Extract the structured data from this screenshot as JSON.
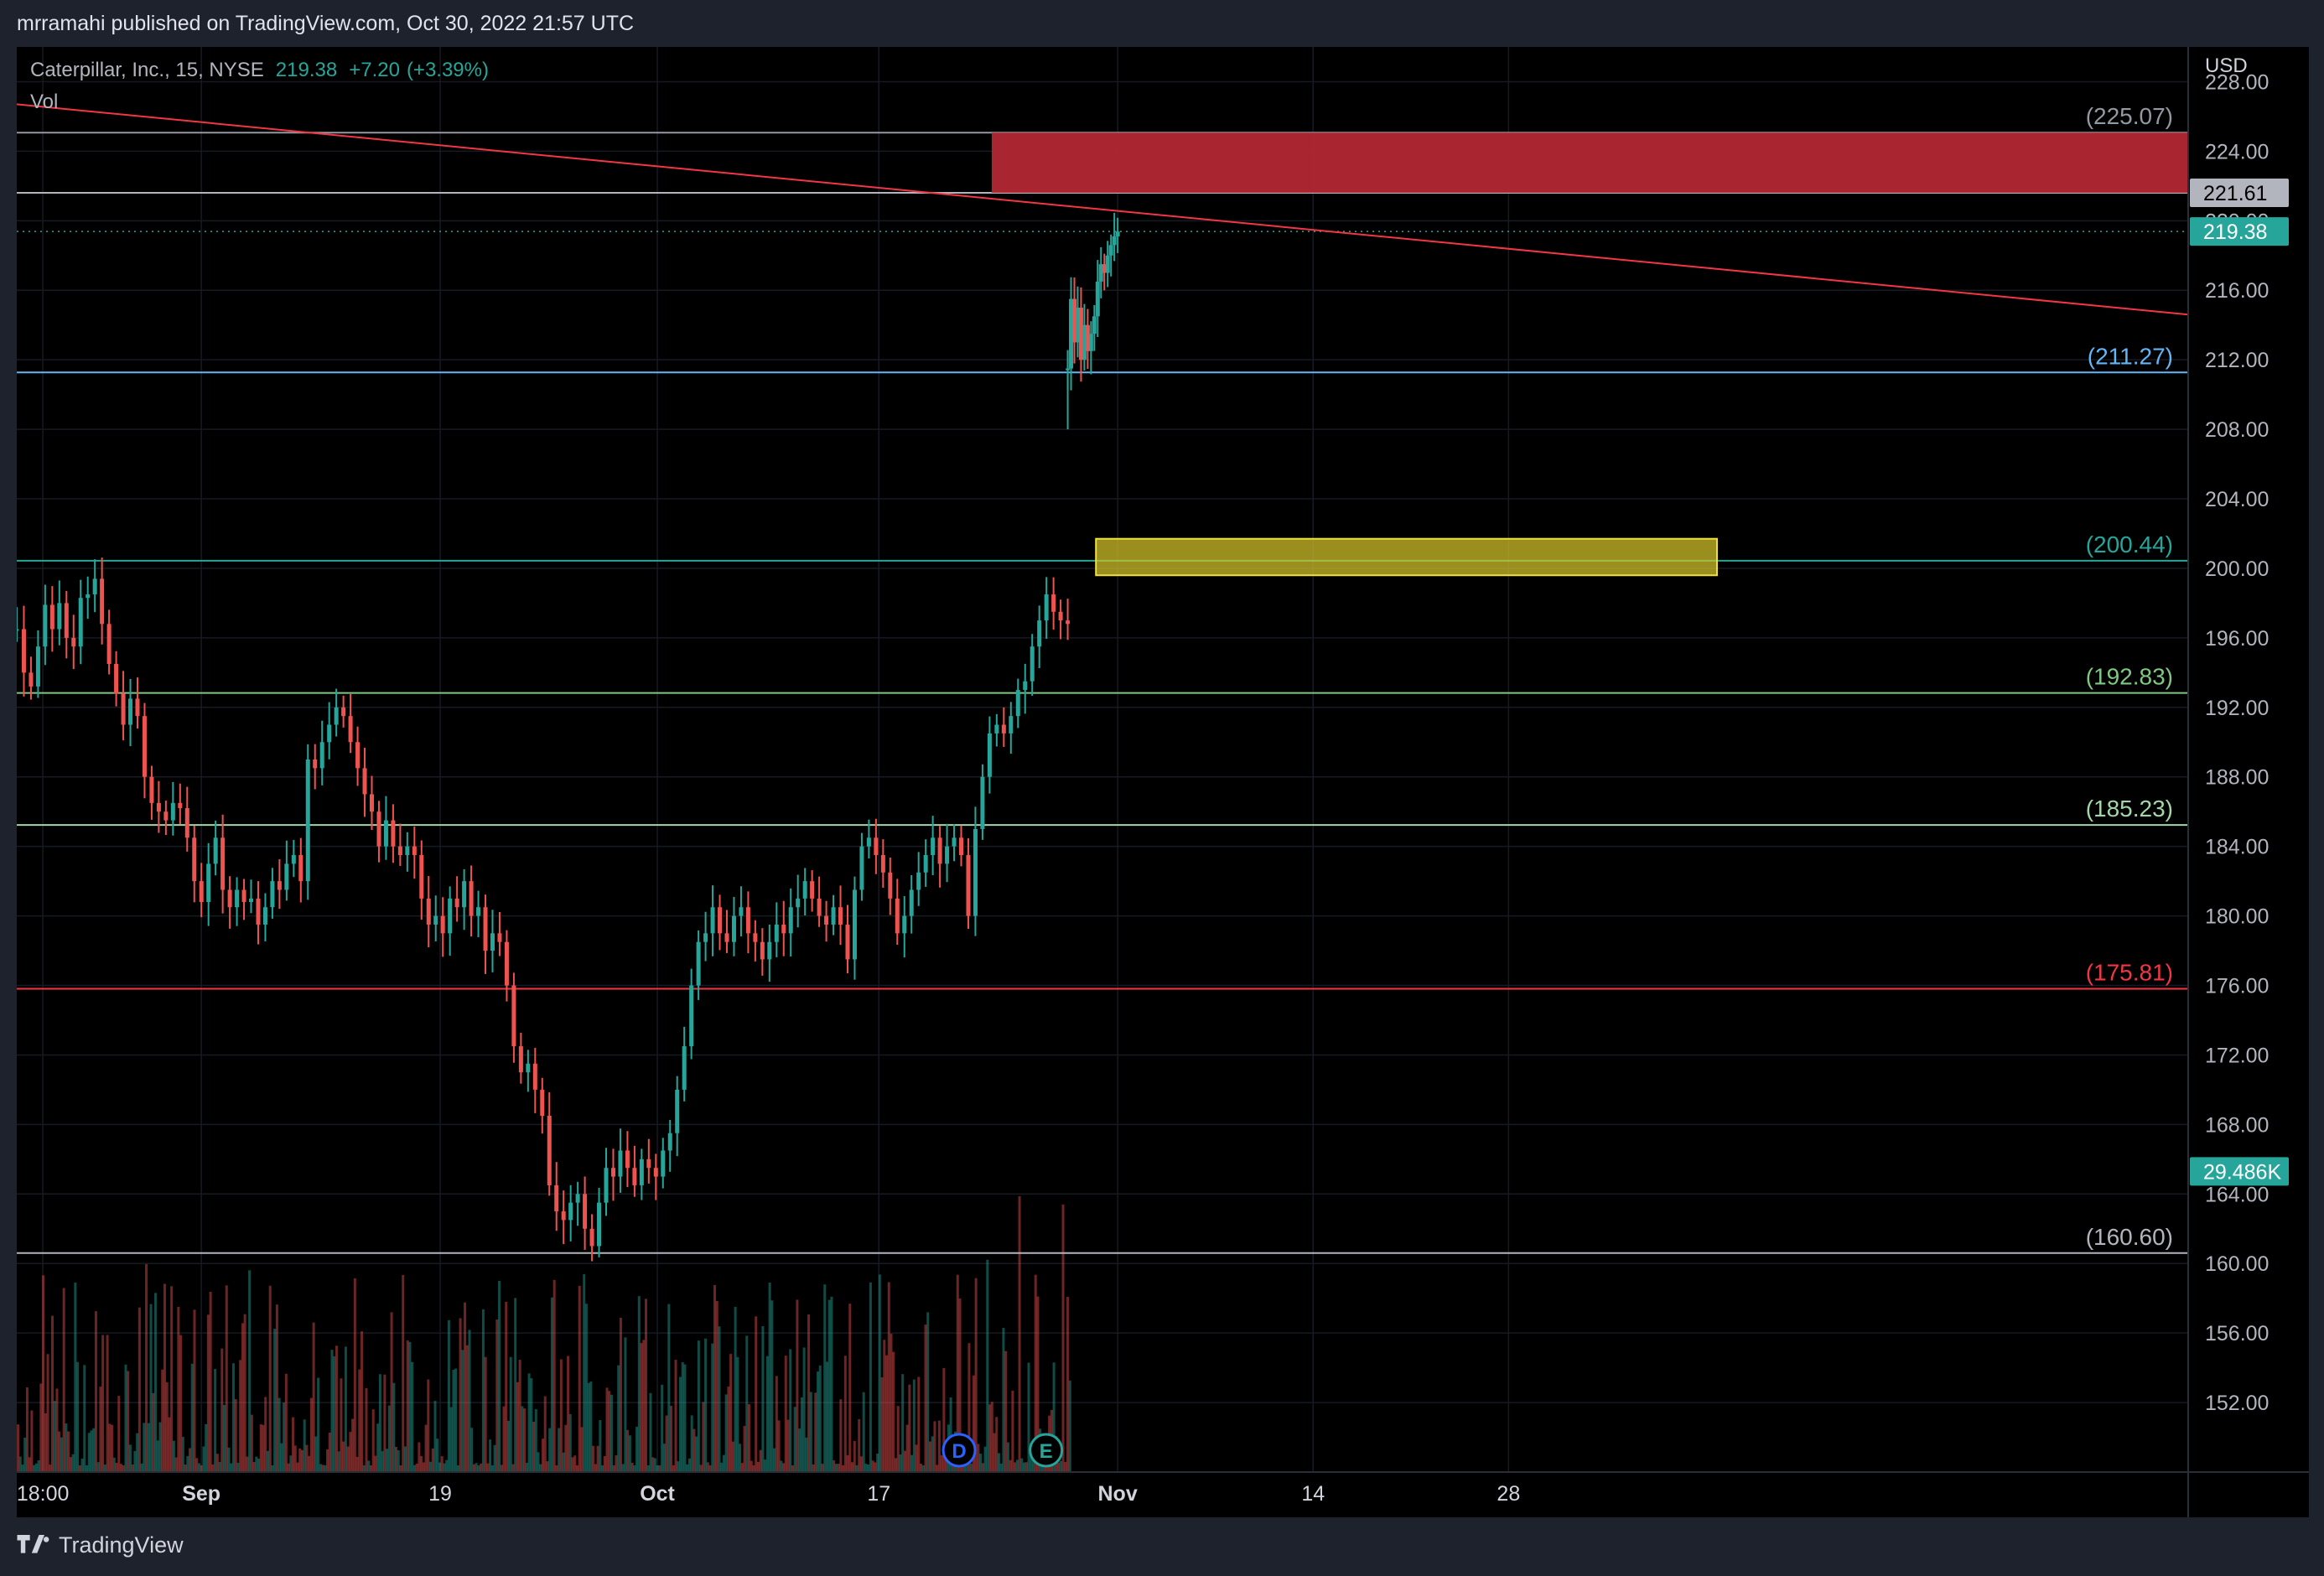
{
  "header": {
    "publisher": "mrramahi published on TradingView.com, Oct 30, 2022 21:57 UTC"
  },
  "legend": {
    "symbol": "Caterpillar, Inc., 15, NYSE",
    "price": "219.38",
    "change": "+7.20",
    "change_pct": "(+3.39%)",
    "vol_label": "Vol"
  },
  "footer": {
    "brand": "TradingView"
  },
  "colors": {
    "up": "#26a69a",
    "down": "#ef5350",
    "bg": "#000000",
    "resistance_zone": "#b22833",
    "target_zone": "#d4c52a",
    "trendline": "#f23645"
  },
  "chart_data": {
    "type": "candlestick",
    "currency": "USD",
    "ylim": [
      148,
      230
    ],
    "y_ticks": [
      "228.00",
      "224.00",
      "220.00",
      "216.00",
      "212.00",
      "208.00",
      "204.00",
      "200.00",
      "196.00",
      "192.00",
      "188.00",
      "184.00",
      "180.00",
      "176.00",
      "172.00",
      "168.00",
      "164.00",
      "160.00",
      "156.00",
      "152.00"
    ],
    "x_ticks": [
      {
        "label": "18:00",
        "pos": 0.012
      },
      {
        "label": "Sep",
        "pos": 0.085
      },
      {
        "label": "19",
        "pos": 0.195
      },
      {
        "label": "Oct",
        "pos": 0.295
      },
      {
        "label": "17",
        "pos": 0.397
      },
      {
        "label": "Nov",
        "pos": 0.507
      },
      {
        "label": "14",
        "pos": 0.597
      },
      {
        "label": "28",
        "pos": 0.687
      }
    ],
    "levels": [
      {
        "value": 225.07,
        "label": "(225.07)",
        "color": "#9598a1"
      },
      {
        "value": 211.27,
        "label": "(211.27)",
        "color": "#64b5f6"
      },
      {
        "value": 200.44,
        "label": "(200.44)",
        "color": "#26a69a"
      },
      {
        "value": 192.83,
        "label": "(192.83)",
        "color": "#81c784"
      },
      {
        "value": 185.23,
        "label": "(185.23)",
        "color": "#a5d6a7"
      },
      {
        "value": 175.81,
        "label": "(175.81)",
        "color": "#f23645"
      },
      {
        "value": 160.6,
        "label": "(160.60)",
        "color": "#b2b5be"
      }
    ],
    "extra_line": {
      "value": 221.61,
      "color": "#b2b5be"
    },
    "price_badges": [
      {
        "value": 221.61,
        "label": "221.61",
        "bg": "#b2b5be",
        "fg": "#000000"
      },
      {
        "value": 219.38,
        "label": "219.38",
        "bg": "#26a69a",
        "fg": "#ffffff"
      },
      {
        "value": 165.3,
        "label": "29.486K",
        "bg": "#26a69a",
        "fg": "#ffffff"
      }
    ],
    "resistance_zone": {
      "x_from": 0.449,
      "x_to": 1.0,
      "y_from": 221.61,
      "y_to": 225.07
    },
    "target_zone": {
      "x_from": 0.497,
      "x_to": 0.783,
      "y_from": 199.6,
      "y_to": 201.7
    },
    "trendline": {
      "x0": 0.0,
      "y0": 226.7,
      "x1": 1.0,
      "y1": 214.6
    },
    "last_price": 219.38,
    "price_path": [
      [
        0.0,
        196.5
      ],
      [
        0.006,
        194.0
      ],
      [
        0.012,
        193.2
      ],
      [
        0.018,
        195.5
      ],
      [
        0.024,
        197.9
      ],
      [
        0.03,
        196.5
      ],
      [
        0.036,
        198.0
      ],
      [
        0.04,
        196.0
      ],
      [
        0.044,
        195.5
      ],
      [
        0.048,
        198.3
      ],
      [
        0.052,
        198.5
      ],
      [
        0.055,
        199.4
      ],
      [
        0.06,
        196.8
      ],
      [
        0.065,
        194.5
      ],
      [
        0.07,
        192.8
      ],
      [
        0.075,
        191.0
      ],
      [
        0.08,
        192.5
      ],
      [
        0.085,
        191.5
      ],
      [
        0.09,
        188.0
      ],
      [
        0.094,
        186.5
      ],
      [
        0.098,
        186.0
      ],
      [
        0.102,
        185.5
      ],
      [
        0.106,
        186.5
      ],
      [
        0.11,
        186.2
      ],
      [
        0.114,
        184.5
      ],
      [
        0.118,
        182.0
      ],
      [
        0.122,
        180.8
      ],
      [
        0.126,
        183.0
      ],
      [
        0.13,
        184.5
      ],
      [
        0.134,
        181.5
      ],
      [
        0.138,
        180.5
      ],
      [
        0.142,
        181.5
      ],
      [
        0.146,
        180.8
      ],
      [
        0.15,
        181.0
      ],
      [
        0.154,
        179.5
      ],
      [
        0.158,
        180.5
      ],
      [
        0.162,
        182.0
      ],
      [
        0.166,
        181.5
      ],
      [
        0.17,
        183.0
      ],
      [
        0.174,
        183.5
      ],
      [
        0.178,
        182.0
      ],
      [
        0.182,
        189.0
      ],
      [
        0.186,
        188.5
      ],
      [
        0.19,
        190.0
      ],
      [
        0.194,
        191.0
      ],
      [
        0.198,
        192.0
      ],
      [
        0.202,
        191.5
      ],
      [
        0.208,
        190.0
      ],
      [
        0.212,
        188.5
      ],
      [
        0.216,
        187.0
      ],
      [
        0.22,
        186.0
      ],
      [
        0.224,
        184.0
      ],
      [
        0.228,
        185.5
      ],
      [
        0.232,
        184.0
      ],
      [
        0.236,
        183.5
      ],
      [
        0.24,
        184.0
      ],
      [
        0.244,
        183.5
      ],
      [
        0.248,
        181.0
      ],
      [
        0.252,
        179.5
      ],
      [
        0.256,
        180.0
      ],
      [
        0.26,
        179.0
      ],
      [
        0.264,
        181.0
      ],
      [
        0.268,
        180.5
      ],
      [
        0.272,
        182.0
      ],
      [
        0.276,
        180.0
      ],
      [
        0.28,
        180.5
      ],
      [
        0.284,
        178.0
      ],
      [
        0.288,
        179.0
      ],
      [
        0.292,
        178.5
      ],
      [
        0.296,
        176.0
      ],
      [
        0.3,
        172.5
      ],
      [
        0.304,
        171.0
      ],
      [
        0.308,
        171.5
      ],
      [
        0.312,
        170.0
      ],
      [
        0.316,
        168.5
      ],
      [
        0.32,
        164.5
      ],
      [
        0.324,
        163.0
      ],
      [
        0.328,
        162.5
      ],
      [
        0.332,
        163.5
      ],
      [
        0.336,
        164.0
      ],
      [
        0.34,
        162.0
      ],
      [
        0.344,
        161.0
      ],
      [
        0.348,
        163.5
      ],
      [
        0.352,
        165.5
      ],
      [
        0.356,
        165.0
      ],
      [
        0.36,
        166.5
      ],
      [
        0.364,
        165.5
      ],
      [
        0.368,
        164.5
      ],
      [
        0.372,
        166.0
      ],
      [
        0.376,
        165.5
      ],
      [
        0.38,
        165.0
      ],
      [
        0.384,
        166.5
      ],
      [
        0.388,
        167.5
      ],
      [
        0.392,
        170.0
      ],
      [
        0.396,
        172.5
      ],
      [
        0.4,
        176.0
      ],
      [
        0.404,
        178.5
      ],
      [
        0.408,
        179.0
      ],
      [
        0.412,
        180.5
      ],
      [
        0.416,
        179.0
      ],
      [
        0.42,
        178.5
      ],
      [
        0.424,
        180.0
      ],
      [
        0.428,
        180.5
      ],
      [
        0.432,
        179.0
      ],
      [
        0.436,
        178.5
      ],
      [
        0.44,
        177.5
      ],
      [
        0.444,
        178.5
      ],
      [
        0.448,
        179.5
      ],
      [
        0.452,
        179.0
      ],
      [
        0.456,
        180.5
      ],
      [
        0.46,
        181.0
      ],
      [
        0.464,
        182.0
      ],
      [
        0.468,
        181.0
      ],
      [
        0.472,
        180.0
      ],
      [
        0.476,
        179.5
      ],
      [
        0.48,
        180.5
      ],
      [
        0.484,
        179.5
      ],
      [
        0.488,
        177.5
      ],
      [
        0.492,
        181.5
      ],
      [
        0.496,
        184.0
      ],
      [
        0.5,
        184.5
      ],
      [
        0.504,
        183.5
      ],
      [
        0.508,
        182.5
      ],
      [
        0.512,
        181.0
      ],
      [
        0.516,
        179.0
      ],
      [
        0.52,
        180.0
      ],
      [
        0.524,
        181.5
      ],
      [
        0.528,
        182.5
      ],
      [
        0.532,
        183.5
      ],
      [
        0.536,
        184.5
      ],
      [
        0.54,
        183.0
      ],
      [
        0.544,
        184.0
      ],
      [
        0.548,
        184.5
      ],
      [
        0.552,
        183.5
      ],
      [
        0.556,
        180.0
      ],
      [
        0.56,
        185.0
      ],
      [
        0.564,
        188.0
      ],
      [
        0.568,
        190.5
      ],
      [
        0.572,
        191.0
      ],
      [
        0.576,
        190.5
      ],
      [
        0.58,
        191.5
      ],
      [
        0.584,
        193.0
      ],
      [
        0.588,
        193.5
      ],
      [
        0.592,
        195.5
      ],
      [
        0.596,
        197.0
      ],
      [
        0.6,
        198.5
      ],
      [
        0.604,
        197.5
      ],
      [
        0.608,
        197.0
      ],
      [
        0.611,
        196.8
      ]
    ],
    "price_path_x_range": [
      0.0,
      0.484
    ],
    "gap_path": [
      [
        0.612,
        211.5
      ],
      [
        0.614,
        215.5
      ],
      [
        0.616,
        213.0
      ],
      [
        0.618,
        215.0
      ],
      [
        0.62,
        212.0
      ],
      [
        0.622,
        214.0
      ],
      [
        0.624,
        212.5
      ],
      [
        0.626,
        213.5
      ],
      [
        0.628,
        214.5
      ],
      [
        0.63,
        216.5
      ],
      [
        0.632,
        217.5
      ],
      [
        0.634,
        217.0
      ],
      [
        0.636,
        218.0
      ],
      [
        0.638,
        218.6
      ],
      [
        0.64,
        219.1
      ],
      [
        0.642,
        219.38
      ]
    ],
    "gap_path_x_range": [
      0.484,
      0.507
    ],
    "gap_low_wick": {
      "x": 0.613,
      "low": 208.0,
      "high": 212.5
    },
    "events": [
      {
        "label": "D",
        "pos": 0.434,
        "color": "#2962ff"
      },
      {
        "label": "E",
        "pos": 0.474,
        "color": "#26a69a"
      }
    ]
  }
}
